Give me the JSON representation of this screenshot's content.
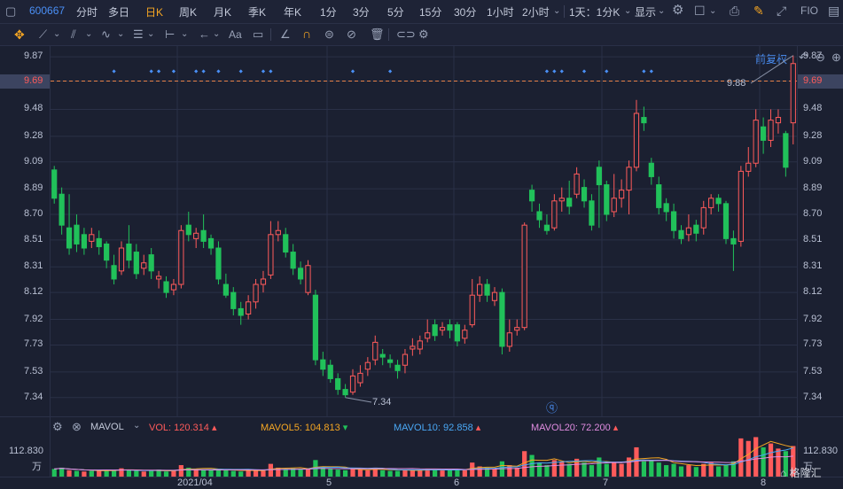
{
  "toolbar": {
    "stock_code": "600667",
    "periods": [
      "分时",
      "多日",
      "日K",
      "周K",
      "月K",
      "季K",
      "年K",
      "1分",
      "3分",
      "5分",
      "15分",
      "30分",
      "1小时",
      "2小时"
    ],
    "active_period": "日K",
    "interval_select": "1天：1分K",
    "display_label": "显示",
    "fio_label": "FIO",
    "adjust_label": "前复权",
    "drawing_text_tool": "Aa"
  },
  "price_axis": {
    "labels": [
      "9.87",
      "9.69",
      "9.48",
      "9.28",
      "9.09",
      "8.89",
      "8.70",
      "8.51",
      "8.31",
      "8.12",
      "7.92",
      "7.73",
      "7.53",
      "7.34"
    ],
    "cursor_price": "9.69",
    "max_label": "9.88",
    "min_label": "7.34"
  },
  "volume_axis": {
    "top_label": "112.830",
    "unit": "万"
  },
  "volume_indicator": {
    "name": "MAVOL",
    "vol": "VOL: 120.314",
    "ma5": "MAVOL5: 104.813",
    "ma10": "MAVOL10: 92.858",
    "ma20": "MAVOL20: 72.200",
    "colors": {
      "vol": "#ff5b5b",
      "ma5": "#f5a623",
      "ma10": "#4aa8f5",
      "ma20": "#e08ce0"
    }
  },
  "x_labels": [
    "2021/04",
    "5",
    "6",
    "7",
    "8"
  ],
  "watermark": "格隆汇",
  "colors": {
    "up": "#ff5b5b",
    "down": "#21c15a",
    "grid": "#2a3047",
    "dashed": "#e8834a",
    "marker": "#4a8ff5"
  },
  "chart_data": {
    "type": "candlestick",
    "ylim": [
      7.2,
      9.95
    ],
    "candles": [
      [
        9.03,
        8.82,
        9.06,
        8.78
      ],
      [
        8.85,
        8.62,
        8.9,
        8.55
      ],
      [
        8.6,
        8.45,
        8.85,
        8.4
      ],
      [
        8.62,
        8.48,
        8.7,
        8.42
      ],
      [
        8.55,
        8.45,
        8.6,
        8.4
      ],
      [
        8.5,
        8.55,
        8.6,
        8.45
      ],
      [
        8.52,
        8.46,
        8.58,
        8.4
      ],
      [
        8.48,
        8.36,
        8.5,
        8.3
      ],
      [
        8.32,
        8.22,
        8.4,
        8.18
      ],
      [
        8.28,
        8.45,
        8.5,
        8.25
      ],
      [
        8.48,
        8.36,
        8.62,
        8.3
      ],
      [
        8.42,
        8.26,
        8.48,
        8.22
      ],
      [
        8.3,
        8.34,
        8.4,
        8.25
      ],
      [
        8.4,
        8.28,
        8.45,
        8.22
      ],
      [
        8.22,
        8.24,
        8.28,
        8.15
      ],
      [
        8.2,
        8.12,
        8.24,
        8.08
      ],
      [
        8.14,
        8.18,
        8.22,
        8.1
      ],
      [
        8.18,
        8.58,
        8.62,
        8.15
      ],
      [
        8.62,
        8.55,
        8.72,
        8.5
      ],
      [
        8.52,
        8.56,
        8.6,
        8.45
      ],
      [
        8.58,
        8.5,
        8.7,
        8.45
      ],
      [
        8.52,
        8.45,
        8.55,
        8.4
      ],
      [
        8.45,
        8.22,
        8.5,
        8.18
      ],
      [
        8.18,
        8.1,
        8.26,
        8.08
      ],
      [
        8.12,
        8.0,
        8.16,
        7.95
      ],
      [
        8.0,
        7.95,
        8.05,
        7.88
      ],
      [
        7.96,
        8.05,
        8.1,
        7.92
      ],
      [
        8.05,
        8.18,
        8.22,
        8.0
      ],
      [
        8.18,
        8.22,
        8.28,
        8.12
      ],
      [
        8.25,
        8.55,
        8.65,
        8.22
      ],
      [
        8.55,
        8.58,
        8.65,
        8.5
      ],
      [
        8.55,
        8.42,
        8.6,
        8.38
      ],
      [
        8.42,
        8.3,
        8.48,
        8.25
      ],
      [
        8.3,
        8.22,
        8.35,
        8.18
      ],
      [
        8.12,
        8.32,
        8.36,
        8.1
      ],
      [
        8.1,
        7.62,
        8.14,
        7.58
      ],
      [
        7.62,
        7.55,
        7.68,
        7.5
      ],
      [
        7.58,
        7.48,
        7.62,
        7.45
      ],
      [
        7.48,
        7.4,
        7.52,
        7.36
      ],
      [
        7.4,
        7.36,
        7.44,
        7.34
      ],
      [
        7.38,
        7.5,
        7.55,
        7.36
      ],
      [
        7.45,
        7.52,
        7.58,
        7.42
      ],
      [
        7.55,
        7.6,
        7.64,
        7.5
      ],
      [
        7.62,
        7.75,
        7.8,
        7.58
      ],
      [
        7.66,
        7.64,
        7.7,
        7.58
      ],
      [
        7.62,
        7.6,
        7.66,
        7.56
      ],
      [
        7.58,
        7.54,
        7.62,
        7.48
      ],
      [
        7.58,
        7.66,
        7.7,
        7.52
      ],
      [
        7.7,
        7.72,
        7.78,
        7.65
      ],
      [
        7.7,
        7.76,
        7.8,
        7.66
      ],
      [
        7.78,
        7.82,
        7.92,
        7.75
      ],
      [
        7.88,
        7.8,
        7.92,
        7.76
      ],
      [
        7.84,
        7.86,
        7.9,
        7.8
      ],
      [
        7.88,
        7.84,
        7.92,
        7.78
      ],
      [
        7.88,
        7.76,
        7.9,
        7.72
      ],
      [
        7.78,
        7.84,
        7.88,
        7.74
      ],
      [
        7.88,
        8.1,
        8.22,
        7.86
      ],
      [
        8.1,
        8.18,
        8.24,
        8.05
      ],
      [
        8.18,
        8.1,
        8.22,
        8.05
      ],
      [
        8.06,
        8.12,
        8.16,
        8.02
      ],
      [
        8.12,
        7.72,
        8.15,
        7.66
      ],
      [
        7.72,
        7.82,
        7.92,
        7.68
      ],
      [
        7.84,
        7.86,
        7.92,
        7.8
      ],
      [
        7.86,
        8.62,
        8.64,
        7.84
      ],
      [
        8.88,
        8.8,
        8.92,
        8.72
      ],
      [
        8.72,
        8.66,
        8.78,
        8.6
      ],
      [
        8.62,
        8.58,
        8.7,
        8.55
      ],
      [
        8.6,
        8.8,
        8.85,
        8.58
      ],
      [
        8.8,
        8.82,
        8.9,
        8.72
      ],
      [
        8.82,
        8.76,
        8.95,
        8.7
      ],
      [
        8.85,
        9.0,
        9.05,
        8.82
      ],
      [
        8.9,
        8.8,
        8.96,
        8.75
      ],
      [
        8.8,
        8.62,
        8.85,
        8.58
      ],
      [
        9.05,
        8.92,
        9.1,
        8.6
      ],
      [
        8.92,
        8.7,
        8.95,
        8.65
      ],
      [
        8.72,
        8.82,
        9.0,
        8.68
      ],
      [
        8.82,
        8.88,
        8.96,
        8.75
      ],
      [
        8.88,
        9.05,
        9.1,
        8.7
      ],
      [
        9.05,
        9.45,
        9.55,
        9.02
      ],
      [
        9.42,
        9.38,
        9.5,
        9.32
      ],
      [
        9.08,
        8.98,
        9.12,
        8.92
      ],
      [
        8.92,
        8.75,
        8.98,
        8.7
      ],
      [
        8.78,
        8.72,
        8.82,
        8.65
      ],
      [
        8.72,
        8.58,
        8.78,
        8.52
      ],
      [
        8.58,
        8.52,
        8.62,
        8.48
      ],
      [
        8.55,
        8.6,
        8.7,
        8.5
      ],
      [
        8.62,
        8.56,
        8.66,
        8.5
      ],
      [
        8.6,
        8.75,
        8.8,
        8.55
      ],
      [
        8.75,
        8.82,
        8.85,
        8.7
      ],
      [
        8.82,
        8.78,
        8.85,
        8.72
      ],
      [
        8.78,
        8.52,
        8.8,
        8.48
      ],
      [
        8.52,
        8.48,
        8.58,
        8.28
      ],
      [
        8.5,
        9.02,
        9.06,
        8.46
      ],
      [
        9.02,
        9.08,
        9.2,
        8.98
      ],
      [
        9.08,
        9.4,
        9.48,
        9.05
      ],
      [
        9.35,
        9.25,
        9.42,
        9.15
      ],
      [
        9.25,
        9.4,
        9.48,
        9.2
      ],
      [
        9.38,
        9.42,
        9.48,
        9.3
      ],
      [
        9.3,
        9.05,
        9.32,
        8.98
      ],
      [
        9.38,
        9.82,
        9.88,
        9.22
      ]
    ],
    "volumes": [
      [
        12,
        0
      ],
      [
        14,
        0
      ],
      [
        10,
        1
      ],
      [
        9,
        0
      ],
      [
        8,
        1
      ],
      [
        9,
        0
      ],
      [
        10,
        1
      ],
      [
        11,
        0
      ],
      [
        9,
        0
      ],
      [
        13,
        1
      ],
      [
        10,
        0
      ],
      [
        9,
        0
      ],
      [
        8,
        1
      ],
      [
        9,
        0
      ],
      [
        11,
        0
      ],
      [
        8,
        0
      ],
      [
        9,
        1
      ],
      [
        18,
        1
      ],
      [
        14,
        0
      ],
      [
        12,
        1
      ],
      [
        11,
        0
      ],
      [
        10,
        0
      ],
      [
        12,
        0
      ],
      [
        10,
        0
      ],
      [
        9,
        0
      ],
      [
        8,
        0
      ],
      [
        10,
        1
      ],
      [
        11,
        1
      ],
      [
        9,
        1
      ],
      [
        20,
        1
      ],
      [
        14,
        1
      ],
      [
        12,
        0
      ],
      [
        13,
        0
      ],
      [
        11,
        0
      ],
      [
        12,
        1
      ],
      [
        26,
        0
      ],
      [
        16,
        0
      ],
      [
        12,
        0
      ],
      [
        11,
        0
      ],
      [
        10,
        0
      ],
      [
        12,
        1
      ],
      [
        11,
        1
      ],
      [
        10,
        1
      ],
      [
        14,
        1
      ],
      [
        10,
        0
      ],
      [
        9,
        0
      ],
      [
        9,
        0
      ],
      [
        10,
        1
      ],
      [
        11,
        1
      ],
      [
        10,
        1
      ],
      [
        12,
        1
      ],
      [
        11,
        0
      ],
      [
        10,
        1
      ],
      [
        11,
        0
      ],
      [
        12,
        0
      ],
      [
        10,
        1
      ],
      [
        22,
        1
      ],
      [
        16,
        1
      ],
      [
        14,
        0
      ],
      [
        12,
        1
      ],
      [
        24,
        0
      ],
      [
        18,
        1
      ],
      [
        14,
        1
      ],
      [
        40,
        1
      ],
      [
        34,
        0
      ],
      [
        22,
        0
      ],
      [
        18,
        0
      ],
      [
        26,
        1
      ],
      [
        24,
        1
      ],
      [
        20,
        0
      ],
      [
        28,
        1
      ],
      [
        22,
        0
      ],
      [
        18,
        0
      ],
      [
        30,
        0
      ],
      [
        20,
        0
      ],
      [
        22,
        1
      ],
      [
        20,
        1
      ],
      [
        30,
        1
      ],
      [
        46,
        1
      ],
      [
        24,
        0
      ],
      [
        26,
        0
      ],
      [
        22,
        0
      ],
      [
        18,
        0
      ],
      [
        20,
        0
      ],
      [
        16,
        0
      ],
      [
        18,
        1
      ],
      [
        15,
        0
      ],
      [
        20,
        1
      ],
      [
        22,
        1
      ],
      [
        16,
        0
      ],
      [
        18,
        0
      ],
      [
        24,
        0
      ],
      [
        60,
        1
      ],
      [
        56,
        1
      ],
      [
        62,
        1
      ],
      [
        46,
        0
      ],
      [
        52,
        1
      ],
      [
        44,
        1
      ],
      [
        40,
        0
      ],
      [
        48,
        1
      ]
    ],
    "markers": [
      8,
      13,
      14,
      16,
      19,
      20,
      22,
      25,
      28,
      29,
      40,
      45,
      66,
      67,
      68,
      71,
      74,
      79,
      80
    ]
  }
}
